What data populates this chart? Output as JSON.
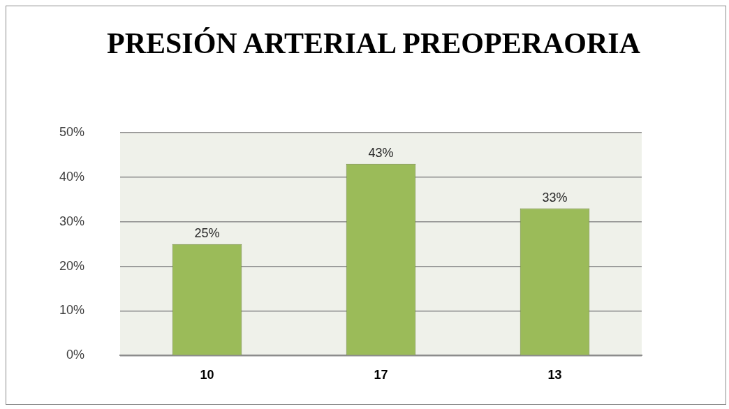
{
  "chart_data": {
    "type": "bar",
    "title": "PRESIÓN ARTERIAL PREOPERAORIA",
    "categories": [
      "10",
      "17",
      "13"
    ],
    "values": [
      25,
      43,
      33
    ],
    "value_labels": [
      "25%",
      "43%",
      "33%"
    ],
    "color": "#9bbb59",
    "ylim": [
      0,
      50
    ],
    "yticks": [
      {
        "value": 0,
        "label": "0%"
      },
      {
        "value": 10,
        "label": "10%"
      },
      {
        "value": 20,
        "label": "20%"
      },
      {
        "value": 30,
        "label": "30%"
      },
      {
        "value": 40,
        "label": "40%"
      },
      {
        "value": 50,
        "label": "50%"
      }
    ],
    "grid": "y",
    "legend": false
  }
}
